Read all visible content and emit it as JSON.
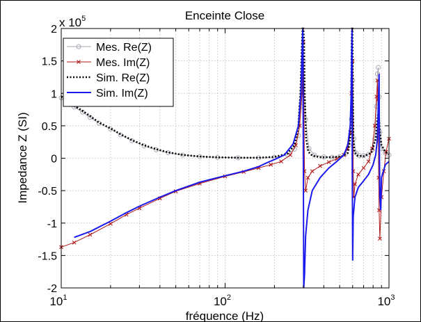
{
  "chart_data": {
    "type": "line",
    "title": "Enceinte Close",
    "xlabel": "fréquence (Hz)",
    "ylabel": "Impedance Z (SI)",
    "xscale": "log",
    "xlim": [
      10,
      1000
    ],
    "ylim": [
      -200000,
      200000
    ],
    "y_exponent_label": "x 10",
    "y_exponent_power": "5",
    "x_tick_labels": [
      {
        "value": 10,
        "base": "10",
        "exp": "1"
      },
      {
        "value": 100,
        "base": "10",
        "exp": "2"
      },
      {
        "value": 1000,
        "base": "10",
        "exp": "3"
      }
    ],
    "y_ticks": [
      -200000,
      -150000,
      -100000,
      -50000,
      0,
      50000,
      100000,
      150000,
      200000
    ],
    "y_tick_labels": [
      "-2",
      "-1.5",
      "-1",
      "-0.5",
      "0",
      "0.5",
      "1",
      "1.5",
      "2"
    ],
    "grid": true,
    "legend_position": "top-left",
    "series": [
      {
        "name": "Mes. Re(Z)",
        "color": "#a8a8b4",
        "line": "solid",
        "marker": "circle",
        "x": [
          10,
          11,
          12,
          13.5,
          15,
          17,
          20,
          23,
          27,
          32,
          38,
          45,
          55,
          70,
          90,
          120,
          160,
          200,
          240,
          265,
          280,
          290,
          300,
          310,
          325,
          350,
          400,
          450,
          500,
          540,
          570,
          590,
          600,
          610,
          630,
          660,
          700,
          750,
          790,
          820,
          840,
          850,
          860,
          870,
          880,
          900,
          950,
          1000
        ],
        "y": [
          93000,
          86000,
          79000,
          71000,
          63000,
          54000,
          45000,
          36000,
          27000,
          19000,
          13000,
          8500,
          5000,
          2600,
          1300,
          700,
          700,
          1500,
          5000,
          14000,
          35000,
          80000,
          150000,
          60000,
          15000,
          5000,
          2000,
          1500,
          2500,
          6000,
          20000,
          60000,
          120000,
          30000,
          8000,
          4000,
          4000,
          6000,
          13000,
          30000,
          80000,
          130000,
          140000,
          95000,
          40000,
          15000,
          8000,
          5000
        ]
      },
      {
        "name": "Mes. Im(Z)",
        "color": "#b01818",
        "line": "solid",
        "marker": "x",
        "x": [
          10,
          12,
          15,
          20,
          25,
          30,
          40,
          50,
          70,
          100,
          130,
          160,
          190,
          220,
          250,
          270,
          285,
          295,
          300,
          305,
          310,
          320,
          340,
          380,
          430,
          480,
          530,
          560,
          580,
          590,
          600,
          605,
          610,
          620,
          650,
          700,
          750,
          790,
          820,
          840,
          850,
          855,
          860,
          865,
          870,
          880,
          900,
          930,
          960,
          1000
        ],
        "y": [
          -137000,
          -130000,
          -118000,
          -101000,
          -87000,
          -77000,
          -62000,
          -51000,
          -39000,
          -28000,
          -21000,
          -15000,
          -10000,
          -5000,
          5000,
          20000,
          50000,
          100000,
          180000,
          -20000,
          -50000,
          -30000,
          -20000,
          -12000,
          -6000,
          -1000,
          5000,
          15000,
          40000,
          100000,
          150000,
          -20000,
          -60000,
          -40000,
          -25000,
          -15000,
          -5000,
          15000,
          50000,
          95000,
          120000,
          90000,
          40000,
          -30000,
          -80000,
          -124000,
          -60000,
          -20000,
          10000,
          30000
        ]
      },
      {
        "name": "Sim. Re(Z)",
        "color": "#000000",
        "line": "dotted",
        "marker": "none",
        "x": [
          10,
          11,
          12,
          13.5,
          15,
          17,
          20,
          23,
          27,
          32,
          38,
          45,
          55,
          70,
          90,
          120,
          160,
          200,
          240,
          265,
          280,
          288,
          293,
          297,
          300,
          303,
          306,
          312,
          322,
          340,
          380,
          450,
          520,
          560,
          580,
          588,
          592,
          595,
          598,
          602,
          606,
          615,
          640,
          700,
          780,
          830,
          850,
          860,
          870,
          880,
          900,
          950,
          1000
        ],
        "y": [
          95000,
          88000,
          81000,
          73000,
          65000,
          55000,
          46000,
          37000,
          28000,
          20000,
          14000,
          9000,
          5200,
          2700,
          1400,
          700,
          800,
          2000,
          7000,
          20000,
          50000,
          100000,
          160000,
          200000,
          200000,
          180000,
          100000,
          30000,
          10000,
          4000,
          1500,
          1500,
          3000,
          8000,
          30000,
          90000,
          180000,
          200000,
          200000,
          100000,
          30000,
          10000,
          4000,
          3000,
          8000,
          30000,
          60000,
          70000,
          60000,
          40000,
          20000,
          10000,
          6000
        ]
      },
      {
        "name": "Sim. Im(Z)",
        "color": "#1a1aee",
        "line": "solid",
        "marker": "none",
        "x": [
          12,
          15,
          20,
          25,
          30,
          40,
          50,
          70,
          100,
          130,
          160,
          180,
          200,
          230,
          260,
          280,
          290,
          295,
          298,
          300,
          302,
          305,
          310,
          320,
          340,
          380,
          430,
          480,
          530,
          560,
          580,
          588,
          592,
          595,
          597,
          600,
          605,
          620,
          650,
          700,
          750,
          800,
          830,
          850,
          860,
          870,
          875,
          880,
          890,
          900,
          950,
          1000
        ],
        "y": [
          -122000,
          -113000,
          -97000,
          -84000,
          -74000,
          -60000,
          -50000,
          -37000,
          -27000,
          -20000,
          -13000,
          -7000,
          -2000,
          5000,
          22000,
          50000,
          100000,
          160000,
          200000,
          0,
          -200000,
          -180000,
          -120000,
          -80000,
          -50000,
          -30000,
          -15000,
          -5000,
          5000,
          20000,
          50000,
          100000,
          160000,
          200000,
          0,
          -158000,
          -90000,
          -60000,
          -45000,
          -35000,
          -25000,
          -10000,
          5000,
          30000,
          80000,
          130000,
          0,
          -60000,
          -80000,
          -30000,
          -10000,
          -5000
        ]
      }
    ]
  }
}
